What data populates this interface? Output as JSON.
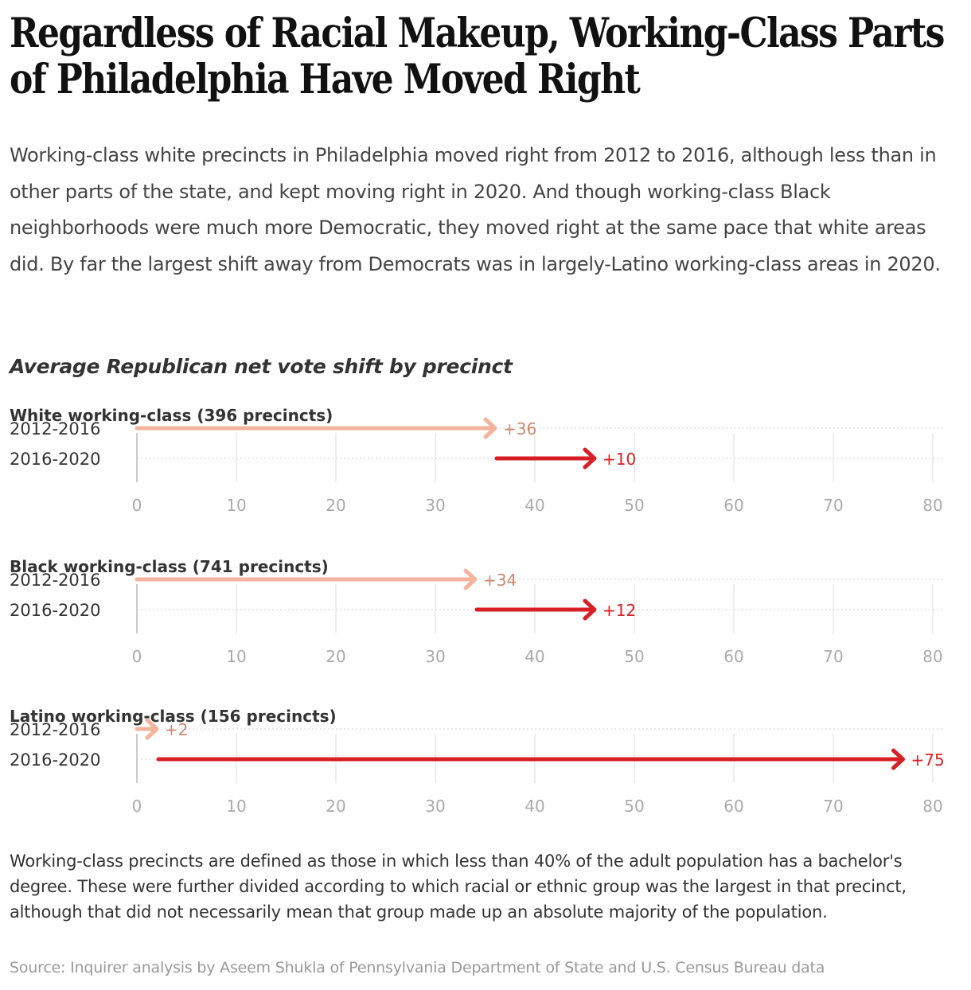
{
  "title": "Regardless of Racial Makeup, Working-Class Parts of Philadelphia Have Moved Right",
  "subtitle": "Working-class white precincts in Philadelphia moved right from 2012 to 2016, although less than in other parts of the state, and kept moving right in 2020. And though working-class Black neighborhoods were much more Democratic, they moved right at the same pace that white areas did. By far the largest shift away from Democrats was in largely-Latino working-class areas in 2020.",
  "chart_title": "Average Republican net vote shift by precinct",
  "colors": {
    "period_2012_2016": "#f4b39c",
    "period_2016_2020": "#d81f26",
    "label_2012_2016": "#c98b70",
    "label_2016_2020": "#d81f26",
    "grid": "#dddddd",
    "tick": "#aaaaaa"
  },
  "chart_data": [
    {
      "type": "arrow",
      "title": "White working-class (396 precincts)",
      "xlim": [
        0,
        80
      ],
      "ticks": [
        0,
        10,
        20,
        30,
        40,
        50,
        60,
        70,
        80
      ],
      "rows": [
        {
          "label": "2012-2016",
          "start": 0,
          "end": 36,
          "value_label": "+36"
        },
        {
          "label": "2016-2020",
          "start": 36,
          "end": 46,
          "value_label": "+10"
        }
      ]
    },
    {
      "type": "arrow",
      "title": "Black working-class (741 precincts)",
      "xlim": [
        0,
        80
      ],
      "ticks": [
        0,
        10,
        20,
        30,
        40,
        50,
        60,
        70,
        80
      ],
      "rows": [
        {
          "label": "2012-2016",
          "start": 0,
          "end": 34,
          "value_label": "+34"
        },
        {
          "label": "2016-2020",
          "start": 34,
          "end": 46,
          "value_label": "+12"
        }
      ]
    },
    {
      "type": "arrow",
      "title": "Latino working-class (156 precincts)",
      "xlim": [
        0,
        80
      ],
      "ticks": [
        0,
        10,
        20,
        30,
        40,
        50,
        60,
        70,
        80
      ],
      "rows": [
        {
          "label": "2012-2016",
          "start": 0,
          "end": 2,
          "value_label": "+2"
        },
        {
          "label": "2016-2020",
          "start": 2,
          "end": 77,
          "value_label": "+75"
        }
      ]
    }
  ],
  "note": "Working-class precincts are defined as those in which less than 40% of the adult population has a bachelor's degree. These were further divided according to which racial or ethnic group was the largest in that precinct, although that did not necessarily mean that group made up an absolute majority of the population.",
  "source": "Source: Inquirer analysis by Aseem Shukla of Pennsylvania Department of State and U.S. Census Bureau data"
}
